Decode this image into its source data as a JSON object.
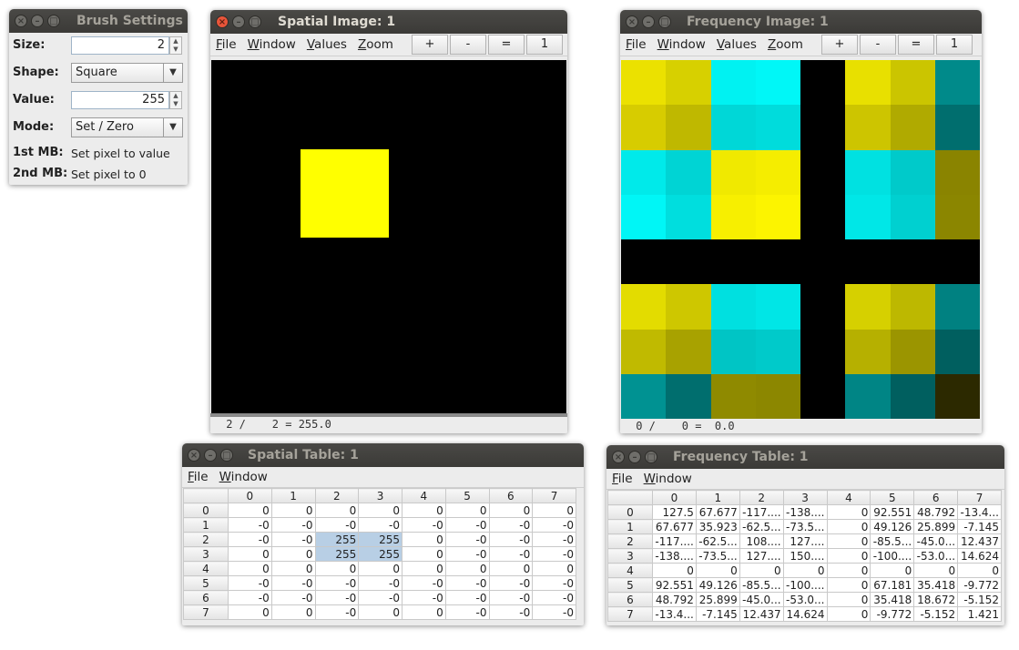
{
  "brush": {
    "title": "Brush Settings",
    "size_label": "Size:",
    "size_value": "2",
    "shape_label": "Shape:",
    "shape_value": "Square",
    "value_label": "Value:",
    "value_value": "255",
    "mode_label": "Mode:",
    "mode_value": "Set / Zero",
    "mb1_label": "1st MB:",
    "mb1_text": "Set pixel to value",
    "mb2_label": "2nd MB:",
    "mb2_text": "Set pixel to 0"
  },
  "spatial_image": {
    "title": "Spatial Image: 1",
    "menus": [
      "File",
      "Window",
      "Values",
      "Zoom"
    ],
    "zoom_buttons": [
      "+",
      "-",
      "=",
      "1"
    ],
    "status": " 2 /    2 = 255.0",
    "grid_size": 8,
    "background": "#000000",
    "foreground": "#ffff00",
    "pixels": [
      [
        0,
        0,
        0,
        0,
        0,
        0,
        0,
        0
      ],
      [
        0,
        0,
        0,
        0,
        0,
        0,
        0,
        0
      ],
      [
        0,
        0,
        1,
        1,
        0,
        0,
        0,
        0
      ],
      [
        0,
        0,
        1,
        1,
        0,
        0,
        0,
        0
      ],
      [
        0,
        0,
        0,
        0,
        0,
        0,
        0,
        0
      ],
      [
        0,
        0,
        0,
        0,
        0,
        0,
        0,
        0
      ],
      [
        0,
        0,
        0,
        0,
        0,
        0,
        0,
        0
      ],
      [
        0,
        0,
        0,
        0,
        0,
        0,
        0,
        0
      ]
    ]
  },
  "frequency_image": {
    "title": "Frequency Image: 1",
    "menus": [
      "File",
      "Window",
      "Values",
      "Zoom"
    ],
    "zoom_buttons": [
      "+",
      "-",
      "=",
      "1"
    ],
    "status": " 0 /    0 =  0.0",
    "colors": [
      [
        "#ebe100",
        "#d7d000",
        "#00f2f2",
        "#00f7f7",
        "#000000",
        "#e8e000",
        "#cbc500",
        "#008a8a"
      ],
      [
        "#d7cc00",
        "#bfb800",
        "#00d7d7",
        "#00dcdc",
        "#000000",
        "#cdc500",
        "#b0aa00",
        "#006e6e"
      ],
      [
        "#00eaea",
        "#00d4d4",
        "#f0e900",
        "#f5ed00",
        "#000000",
        "#00e1e1",
        "#00caca",
        "#8a8400"
      ],
      [
        "#00f6f6",
        "#00dede",
        "#f7ef00",
        "#fcf400",
        "#000000",
        "#00e7e7",
        "#00d0d0",
        "#8b8600"
      ],
      [
        "#000000",
        "#000000",
        "#000000",
        "#000000",
        "#000000",
        "#000000",
        "#000000",
        "#000000"
      ],
      [
        "#e3dc00",
        "#cec700",
        "#00e0e0",
        "#00e6e6",
        "#000000",
        "#d6d000",
        "#bdb800",
        "#008181"
      ],
      [
        "#c0ba00",
        "#a8a200",
        "#00c5c5",
        "#00caca",
        "#000000",
        "#b6b000",
        "#9b9500",
        "#005f5f"
      ],
      [
        "#009292",
        "#006e6e",
        "#8f8a00",
        "#8c8700",
        "#000000",
        "#008585",
        "#005f5f",
        "#2c2900"
      ]
    ]
  },
  "spatial_table": {
    "title": "Spatial Table: 1",
    "menus": [
      "File",
      "Window"
    ],
    "headers": [
      "",
      "0",
      "1",
      "2",
      "3",
      "4",
      "5",
      "6",
      "7"
    ],
    "rows": [
      [
        "0",
        "0",
        "0",
        "0",
        "0",
        "0",
        "0",
        "0",
        "0"
      ],
      [
        "1",
        "-0",
        "-0",
        "-0",
        "-0",
        "-0",
        "-0",
        "-0",
        "-0"
      ],
      [
        "2",
        "-0",
        "-0",
        "255",
        "255",
        "0",
        "-0",
        "-0",
        "-0"
      ],
      [
        "3",
        "0",
        "0",
        "255",
        "255",
        "0",
        "-0",
        "-0",
        "-0"
      ],
      [
        "4",
        "0",
        "0",
        "0",
        "0",
        "0",
        "0",
        "0",
        "0"
      ],
      [
        "5",
        "-0",
        "-0",
        "-0",
        "-0",
        "-0",
        "-0",
        "-0",
        "-0"
      ],
      [
        "6",
        "-0",
        "-0",
        "-0",
        "-0",
        "-0",
        "-0",
        "-0",
        "-0"
      ],
      [
        "7",
        "0",
        "0",
        "-0",
        "0",
        "0",
        "-0",
        "-0",
        "-0"
      ]
    ],
    "selected": [
      [
        2,
        3
      ],
      [
        2,
        4
      ],
      [
        3,
        3
      ],
      [
        3,
        4
      ]
    ]
  },
  "frequency_table": {
    "title": "Frequency Table: 1",
    "menus": [
      "File",
      "Window"
    ],
    "headers": [
      "",
      "0",
      "1",
      "2",
      "3",
      "4",
      "5",
      "6",
      "7"
    ],
    "rows": [
      [
        "0",
        "127.5",
        "67.677",
        "-117....",
        "-138....",
        "0",
        "92.551",
        "48.792",
        "-13.4..."
      ],
      [
        "1",
        "67.677",
        "35.923",
        "-62.5...",
        "-73.5...",
        "0",
        "49.126",
        "25.899",
        "-7.145"
      ],
      [
        "2",
        "-117....",
        "-62.5...",
        "108....",
        "127....",
        "0",
        "-85.5...",
        "-45.0...",
        "12.437"
      ],
      [
        "3",
        "-138....",
        "-73.5...",
        "127....",
        "150....",
        "0",
        "-100....",
        "-53.0...",
        "14.624"
      ],
      [
        "4",
        "0",
        "0",
        "0",
        "0",
        "0",
        "0",
        "0",
        "0"
      ],
      [
        "5",
        "92.551",
        "49.126",
        "-85.5...",
        "-100....",
        "0",
        "67.181",
        "35.418",
        "-9.772"
      ],
      [
        "6",
        "48.792",
        "25.899",
        "-45.0...",
        "-53.0...",
        "0",
        "35.418",
        "18.672",
        "-5.152"
      ],
      [
        "7",
        "-13.4...",
        "-7.145",
        "12.437",
        "14.624",
        "0",
        "-9.772",
        "-5.152",
        "1.421"
      ]
    ]
  }
}
